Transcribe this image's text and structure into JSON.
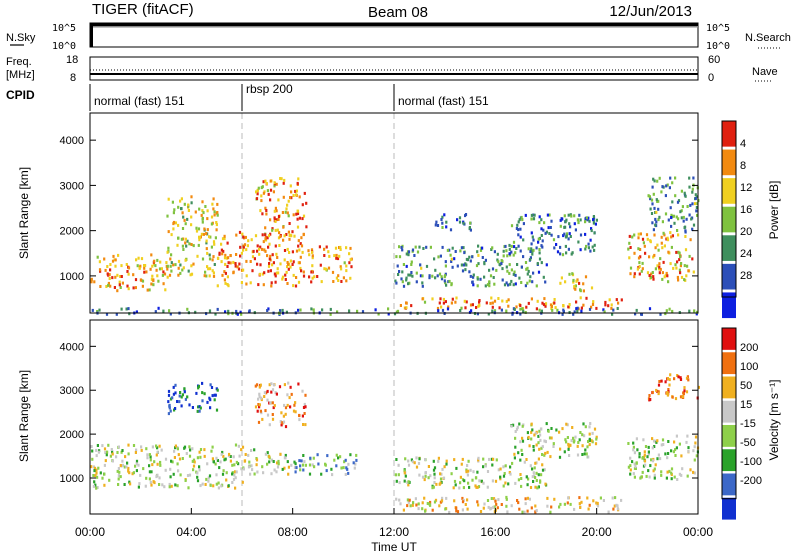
{
  "header": {
    "radar": "TIGER (fitACF)",
    "beam": "Beam 08",
    "date": "12/Jun/2013"
  },
  "top_panels": {
    "nsky": {
      "label": "N.Sky",
      "ticks": [
        "10^5",
        "10^0"
      ],
      "right_ticks": [
        "10^5",
        "10^0"
      ],
      "right_label": "N.Search"
    },
    "freq": {
      "label_line1": "Freq.",
      "label_line2": "[MHz]",
      "ticks": [
        "18",
        "8"
      ],
      "right_ticks": [
        "60",
        "0"
      ],
      "right_label": "Nave"
    },
    "cpid": {
      "label": "CPID",
      "segments": [
        {
          "label": "normal (fast) 151",
          "start": 0,
          "end": 6
        },
        {
          "label": "rbsp 200",
          "start": 6,
          "end": 12
        },
        {
          "label": "normal (fast) 151",
          "start": 12,
          "end": 24
        }
      ]
    }
  },
  "chart_data": [
    {
      "type": "heatmap",
      "title": "",
      "xlabel": "Time UT",
      "ylabel": "Slant Range [km]",
      "xlim": [
        0,
        24
      ],
      "ylim": [
        180,
        4600
      ],
      "xticks": [
        0,
        4,
        8,
        12,
        16,
        20,
        24
      ],
      "xtick_labels": [
        "00:00",
        "04:00",
        "08:00",
        "12:00",
        "16:00",
        "20:00",
        "00:00"
      ],
      "yticks": [
        1000,
        2000,
        3000,
        4000
      ],
      "colorbar": {
        "label": "Power [dB]",
        "ticks": [
          "4",
          "8",
          "12",
          "16",
          "20",
          "24",
          "28"
        ],
        "colors": [
          "#0d1fe0",
          "#2c4fb8",
          "#3f8f5e",
          "#7fc23f",
          "#f0d020",
          "#f28a10",
          "#e02010"
        ]
      },
      "regions": [
        {
          "t0": 0.0,
          "t1": 3.0,
          "r0": 700,
          "r1": 1500,
          "level": 0.72
        },
        {
          "t0": 3.0,
          "t1": 5.0,
          "r0": 1000,
          "r1": 2800,
          "level": 0.6
        },
        {
          "t0": 5.0,
          "t1": 8.5,
          "r0": 800,
          "r1": 2000,
          "level": 0.8
        },
        {
          "t0": 6.5,
          "t1": 8.5,
          "r0": 1900,
          "r1": 3200,
          "level": 0.75
        },
        {
          "t0": 8.5,
          "t1": 10.3,
          "r0": 900,
          "r1": 1700,
          "level": 0.78
        },
        {
          "t0": 12.0,
          "t1": 18.0,
          "r0": 800,
          "r1": 1700,
          "level": 0.35
        },
        {
          "t0": 13.5,
          "t1": 15.0,
          "r0": 2000,
          "r1": 2400,
          "level": 0.22
        },
        {
          "t0": 16.5,
          "t1": 20.0,
          "r0": 1500,
          "r1": 2400,
          "level": 0.3
        },
        {
          "t0": 18.5,
          "t1": 19.8,
          "r0": 700,
          "r1": 1100,
          "level": 0.72
        },
        {
          "t0": 21.2,
          "t1": 23.8,
          "r0": 900,
          "r1": 2000,
          "level": 0.7
        },
        {
          "t0": 22.0,
          "t1": 24.0,
          "r0": 2000,
          "r1": 3200,
          "level": 0.35
        },
        {
          "t0": 12.0,
          "t1": 21.0,
          "r0": 300,
          "r1": 550,
          "level": 0.78
        },
        {
          "t0": 0.0,
          "t1": 24.0,
          "r0": 180,
          "r1": 320,
          "level": 0.3
        }
      ]
    },
    {
      "type": "heatmap",
      "title": "",
      "xlabel": "Time UT",
      "ylabel": "Slant Range [km]",
      "xlim": [
        0,
        24
      ],
      "ylim": [
        180,
        4600
      ],
      "xticks": [
        0,
        4,
        8,
        12,
        16,
        20,
        24
      ],
      "xtick_labels": [
        "00:00",
        "04:00",
        "08:00",
        "12:00",
        "16:00",
        "20:00",
        "00:00"
      ],
      "yticks": [
        1000,
        2000,
        3000,
        4000
      ],
      "colorbar": {
        "label": "Velocity [m s⁻¹]",
        "ticks": [
          "200",
          "100",
          "50",
          "15",
          "-15",
          "-50",
          "-100",
          "-200"
        ],
        "colors": [
          "#1030d0",
          "#3c68c8",
          "#2aa22a",
          "#8ed04a",
          "#c8c8c8",
          "#f0b020",
          "#f07010",
          "#e01010"
        ]
      },
      "regions": [
        {
          "t0": 0.0,
          "t1": 6.0,
          "r0": 800,
          "r1": 1800,
          "level": 0.5
        },
        {
          "t0": 6.0,
          "t1": 8.0,
          "r0": 1100,
          "r1": 1700,
          "level": 0.5
        },
        {
          "t0": 8.0,
          "t1": 10.5,
          "r0": 1100,
          "r1": 1600,
          "level": 0.35
        },
        {
          "t0": 3.0,
          "t1": 5.0,
          "r0": 2500,
          "r1": 3200,
          "level": 0.15
        },
        {
          "t0": 6.5,
          "t1": 8.5,
          "r0": 2200,
          "r1": 3200,
          "level": 0.75
        },
        {
          "t0": 12.0,
          "t1": 18.0,
          "r0": 800,
          "r1": 1500,
          "level": 0.5
        },
        {
          "t0": 16.5,
          "t1": 20.0,
          "r0": 1500,
          "r1": 2300,
          "level": 0.5
        },
        {
          "t0": 21.2,
          "t1": 24.0,
          "r0": 1000,
          "r1": 2000,
          "level": 0.5
        },
        {
          "t0": 22.0,
          "t1": 24.0,
          "r0": 2800,
          "r1": 3400,
          "level": 0.85
        },
        {
          "t0": 12.0,
          "t1": 21.0,
          "r0": 250,
          "r1": 600,
          "level": 0.62
        }
      ]
    }
  ]
}
